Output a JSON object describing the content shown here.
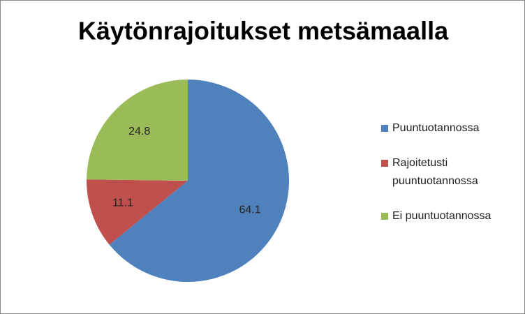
{
  "chart_data": {
    "type": "pie",
    "title": "Käytönrajoitukset metsämaalla",
    "categories": [
      "Puuntuotannossa",
      "Rajoitetusti puuntuotannossa",
      "Ei puuntuotannossa"
    ],
    "values": [
      64.1,
      11.1,
      24.8
    ],
    "colors": [
      "#4f81bd",
      "#c0504d",
      "#9bbb59"
    ],
    "legend": "right"
  }
}
